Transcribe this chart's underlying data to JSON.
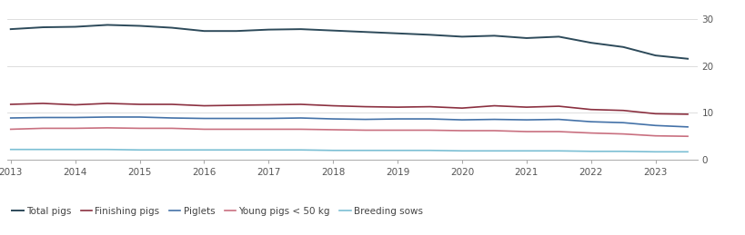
{
  "series": {
    "Total pigs": {
      "color": "#2d4a5a",
      "linewidth": 1.4,
      "values": [
        27.8,
        28.2,
        28.3,
        28.7,
        28.5,
        28.1,
        27.4,
        27.4,
        27.7,
        27.8,
        27.5,
        27.2,
        26.9,
        26.6,
        26.2,
        26.4,
        25.9,
        26.2,
        24.9,
        24.0,
        22.2,
        21.5
      ]
    },
    "Finishing pigs": {
      "color": "#8b3040",
      "linewidth": 1.2,
      "values": [
        11.8,
        12.0,
        11.7,
        12.0,
        11.8,
        11.8,
        11.5,
        11.6,
        11.7,
        11.8,
        11.5,
        11.3,
        11.2,
        11.3,
        11.0,
        11.5,
        11.2,
        11.4,
        10.7,
        10.5,
        9.8,
        9.7
      ]
    },
    "Piglets": {
      "color": "#4472a8",
      "linewidth": 1.2,
      "values": [
        8.9,
        9.0,
        9.0,
        9.1,
        9.1,
        8.9,
        8.8,
        8.8,
        8.8,
        8.9,
        8.7,
        8.6,
        8.7,
        8.7,
        8.5,
        8.6,
        8.5,
        8.6,
        8.1,
        7.9,
        7.3,
        7.0
      ]
    },
    "Young pigs < 50 kg": {
      "color": "#c97080",
      "linewidth": 1.2,
      "values": [
        6.5,
        6.7,
        6.7,
        6.8,
        6.7,
        6.7,
        6.5,
        6.5,
        6.5,
        6.5,
        6.4,
        6.3,
        6.3,
        6.3,
        6.2,
        6.2,
        6.0,
        6.0,
        5.7,
        5.5,
        5.1,
        5.0
      ]
    },
    "Breeding sows": {
      "color": "#7bbfd4",
      "linewidth": 1.2,
      "values": [
        2.2,
        2.2,
        2.2,
        2.2,
        2.1,
        2.1,
        2.1,
        2.1,
        2.1,
        2.1,
        2.0,
        2.0,
        2.0,
        2.0,
        1.9,
        1.9,
        1.9,
        1.9,
        1.8,
        1.8,
        1.7,
        1.7
      ]
    }
  },
  "x_start": 2013.0,
  "x_step": 0.5,
  "x_ticks": [
    2013,
    2014,
    2015,
    2016,
    2017,
    2018,
    2019,
    2020,
    2021,
    2022,
    2023
  ],
  "ylim": [
    0,
    32
  ],
  "yticks": [
    0,
    10,
    20,
    30
  ],
  "background_color": "#ffffff",
  "grid_color": "#d8d8d8",
  "legend_order": [
    "Total pigs",
    "Finishing pigs",
    "Piglets",
    "Young pigs < 50 kg",
    "Breeding sows"
  ],
  "legend_fontsize": 7.5,
  "tick_fontsize": 7.5
}
